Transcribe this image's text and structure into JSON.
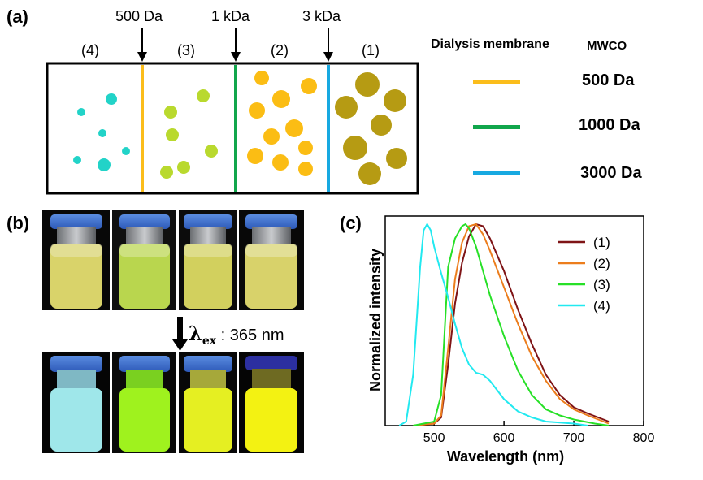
{
  "panel_a": {
    "label": "(a)",
    "cutoff_labels": [
      "500 Da",
      "1 kDa",
      "3 kDa"
    ],
    "compartments": [
      "(4)",
      "(3)",
      "(2)",
      "(1)"
    ],
    "legend": {
      "title": "Dialysis membrane",
      "title2": "MWCO",
      "items": [
        {
          "label": "500 Da",
          "color": "#fbbd1b"
        },
        {
          "label": "1000 Da",
          "color": "#11a64c"
        },
        {
          "label": "3000 Da",
          "color": "#17a9e1"
        }
      ]
    },
    "particle_colors": [
      "#22d3c8",
      "#b9d92e",
      "#fbbd14",
      "#b69b13"
    ]
  },
  "panel_b": {
    "label": "(b)",
    "excitation_symbol": "λ",
    "excitation_sub": "ex",
    "excitation_text": ": 365 nm",
    "top_liquid_colors": [
      "#d9d36a",
      "#b9d64e",
      "#d2d05e",
      "#d8d26a"
    ],
    "bottom_liquid_colors": [
      "#9fe7ea",
      "#9ff21e",
      "#e5ef22",
      "#f3f212"
    ]
  },
  "panel_c": {
    "label": "(c)",
    "chart_data": {
      "type": "line",
      "xlabel": "Wavelength (nm)",
      "ylabel": "Normalized intensity",
      "xlim": [
        430,
        800
      ],
      "ylim": [
        0,
        1.03
      ],
      "xticks": [
        500,
        600,
        700,
        800
      ],
      "series": [
        {
          "name": "(1)",
          "color": "#7f1416",
          "x": [
            470,
            500,
            510,
            520,
            530,
            540,
            550,
            560,
            570,
            580,
            600,
            620,
            640,
            660,
            680,
            700,
            720,
            750
          ],
          "y": [
            0,
            0.01,
            0.04,
            0.3,
            0.6,
            0.8,
            0.93,
            0.99,
            0.98,
            0.92,
            0.76,
            0.57,
            0.4,
            0.25,
            0.15,
            0.09,
            0.06,
            0.02
          ]
        },
        {
          "name": "(2)",
          "color": "#ec7d1c",
          "x": [
            470,
            500,
            510,
            520,
            530,
            540,
            550,
            560,
            570,
            580,
            600,
            620,
            640,
            660,
            680,
            700,
            720,
            750
          ],
          "y": [
            0,
            0.01,
            0.05,
            0.38,
            0.72,
            0.9,
            0.98,
            0.99,
            0.94,
            0.86,
            0.68,
            0.5,
            0.34,
            0.22,
            0.13,
            0.08,
            0.05,
            0.01
          ]
        },
        {
          "name": "(3)",
          "color": "#27e027",
          "x": [
            470,
            500,
            510,
            520,
            530,
            540,
            545,
            550,
            560,
            570,
            580,
            600,
            620,
            640,
            660,
            680,
            700,
            730,
            750
          ],
          "y": [
            0,
            0.02,
            0.15,
            0.78,
            0.92,
            0.98,
            0.99,
            0.97,
            0.88,
            0.76,
            0.64,
            0.44,
            0.27,
            0.15,
            0.08,
            0.05,
            0.03,
            0.01,
            0
          ]
        },
        {
          "name": "(4)",
          "color": "#22e9f0",
          "x": [
            450,
            460,
            470,
            480,
            485,
            490,
            495,
            500,
            510,
            520,
            530,
            540,
            550,
            560,
            570,
            580,
            600,
            620,
            640,
            660,
            700,
            720
          ],
          "y": [
            0,
            0.02,
            0.25,
            0.78,
            0.96,
            0.99,
            0.96,
            0.88,
            0.75,
            0.63,
            0.5,
            0.38,
            0.3,
            0.26,
            0.25,
            0.22,
            0.13,
            0.07,
            0.04,
            0.02,
            0.01,
            0
          ]
        }
      ]
    }
  }
}
